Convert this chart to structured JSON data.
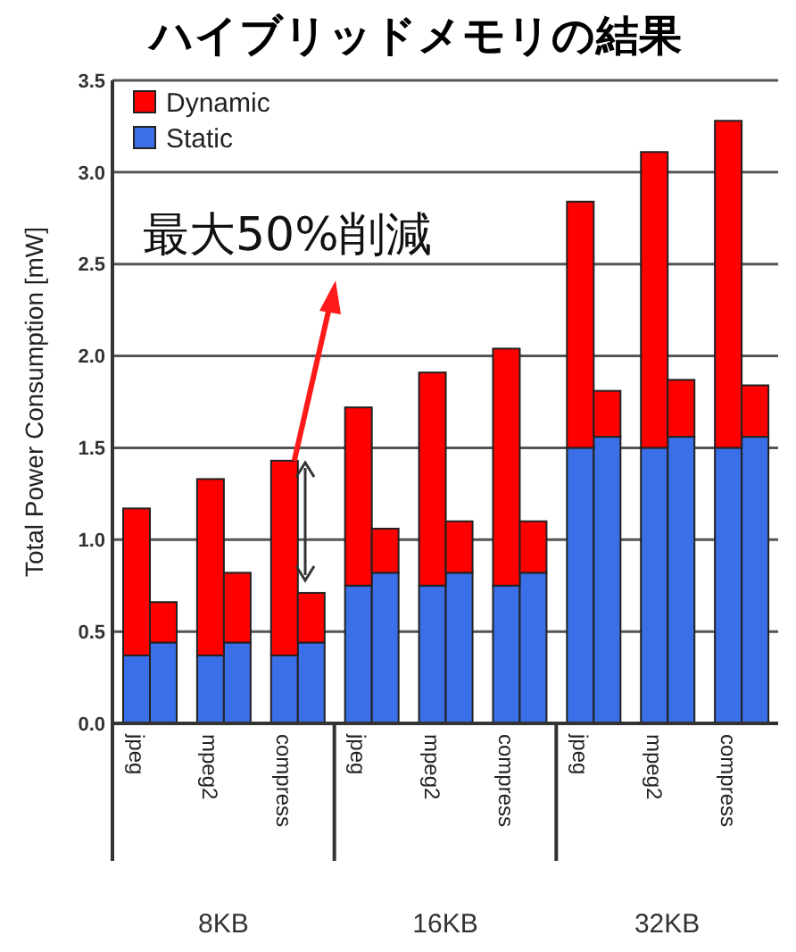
{
  "chart_data": {
    "type": "bar",
    "title": "ハイブリッドメモリの結果",
    "ylabel": "Total Power Consumption [mW]",
    "categories": [
      "jpeg",
      null,
      "mpeg2",
      null,
      "compress",
      null,
      "jpeg",
      null,
      "mpeg2",
      null,
      "compress",
      null,
      "jpeg",
      null,
      "mpeg2",
      null,
      "compress",
      null
    ],
    "stacked": true,
    "series": [
      {
        "name": "Static",
        "color": "#3a6fe8",
        "values": [
          0.37,
          0.44,
          0.37,
          0.44,
          0.37,
          0.44,
          0.75,
          0.82,
          0.75,
          0.82,
          0.75,
          0.82,
          1.5,
          1.56,
          1.5,
          1.56,
          1.5,
          1.56
        ]
      },
      {
        "name": "Dynamic",
        "color": "#ff0000",
        "values": [
          0.8,
          0.22,
          0.96,
          0.38,
          1.06,
          0.27,
          0.97,
          0.24,
          1.16,
          0.28,
          1.29,
          0.28,
          1.34,
          0.25,
          1.61,
          0.31,
          1.78,
          0.28
        ]
      }
    ],
    "ylim": [
      0,
      3.5
    ],
    "yticks": [
      {
        "value": 0,
        "label": "0.0"
      },
      0.5,
      {
        "value": 1,
        "label": "1.0"
      },
      1.5,
      {
        "value": 2,
        "label": "2.0"
      },
      2.5,
      {
        "value": 3,
        "label": "3.0"
      },
      3.5
    ],
    "grid": "y",
    "legend": "top left",
    "annotations": [
      {
        "text": "最大50%削減",
        "x": "compress",
        "y": 1.43
      },
      "8KB",
      "16KB",
      "32KB"
    ]
  }
}
